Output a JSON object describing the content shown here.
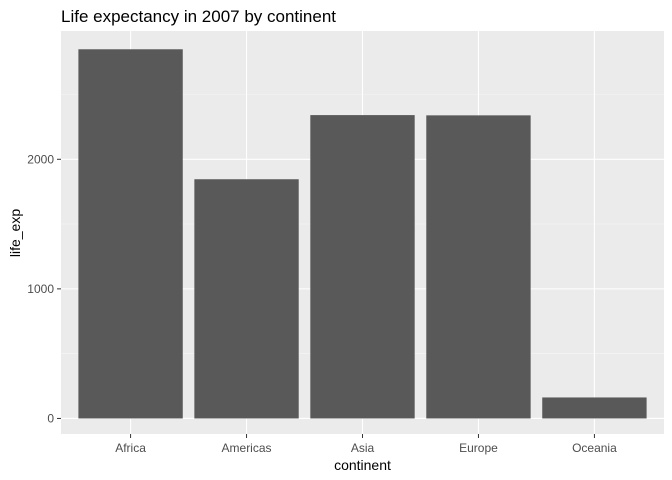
{
  "chart_data": {
    "type": "bar",
    "title": "Life expectancy in 2007 by continent",
    "xlabel": "continent",
    "ylabel": "life_exp",
    "categories": [
      "Africa",
      "Americas",
      "Asia",
      "Europe",
      "Oceania"
    ],
    "values": [
      2849,
      1846,
      2341,
      2339,
      162
    ],
    "ylim": [
      -120,
      2990
    ],
    "yticks": [
      0,
      1000,
      2000
    ],
    "ytick_labels": [
      "0",
      "1000",
      "2000"
    ],
    "grid": true,
    "legend": "none",
    "colors": {
      "bar": "#595959",
      "panel": "#ebebeb",
      "grid_major": "#ffffff",
      "grid_minor": "#f5f5f5",
      "tick_text": "#4d4d4d",
      "tick_mark": "#333333"
    }
  }
}
